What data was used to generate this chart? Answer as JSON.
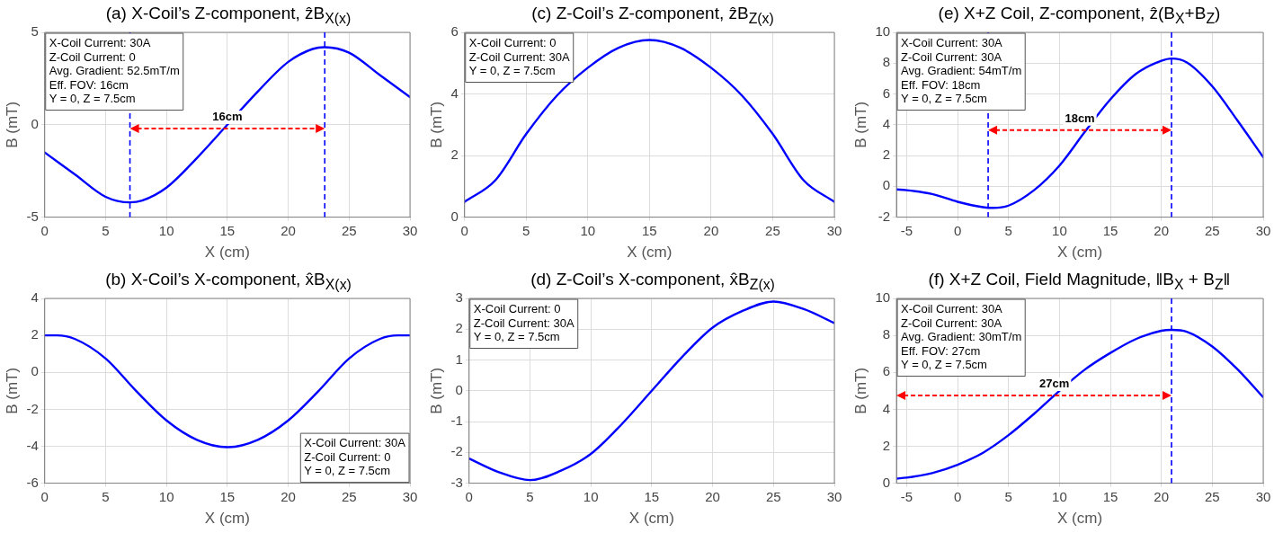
{
  "chart_data": [
    {
      "type": "line",
      "title": "(a) X-Coil’s Z-component, ẑB$_{X(x)}$",
      "xlabel": "X (cm)",
      "ylabel": "B (mT)",
      "x": [
        0,
        2.5,
        5,
        7,
        8,
        10,
        12.5,
        15,
        17.5,
        20,
        22,
        23,
        25,
        27.5,
        30
      ],
      "series": [
        {
          "color": "#0000ff",
          "values": [
            -1.5,
            -2.7,
            -3.9,
            -4.2,
            -4.1,
            -3.4,
            -1.8,
            0,
            1.8,
            3.4,
            4.1,
            4.2,
            3.9,
            2.7,
            1.5
          ]
        }
      ],
      "xlim": [
        0,
        30
      ],
      "xticks": [
        0,
        5,
        10,
        15,
        20,
        25,
        30
      ],
      "ylim": [
        -5,
        5
      ],
      "yticks": [
        -5,
        0,
        5
      ],
      "grid": true,
      "ref_lines": [
        {
          "axis": "x",
          "value": 7,
          "color": "#0000ff",
          "line_style": "dashed"
        },
        {
          "axis": "x",
          "value": 23,
          "color": "#0000ff",
          "line_style": "dashed"
        }
      ],
      "annotations": [
        "X-Coil Current: 30A\nZ-Coil Current: 0\nAvg. Gradient: 52.5mT/m\nEff. FOV: 16cm\nY = 0, Z = 7.5cm",
        {
          "text": "16cm",
          "x": 15,
          "y": -0.2
        }
      ]
    },
    {
      "type": "line",
      "title": "(c) Z-Coil’s Z-component, ẑB$_{Z(x)}$",
      "xlabel": "X (cm)",
      "ylabel": "B (mT)",
      "x": [
        0,
        2.5,
        5,
        7.5,
        10,
        12.5,
        15,
        17.5,
        20,
        22.5,
        25,
        27.5,
        30
      ],
      "series": [
        {
          "color": "#0000ff",
          "values": [
            0.5,
            1.2,
            2.7,
            3.95,
            4.85,
            5.5,
            5.75,
            5.5,
            4.85,
            3.95,
            2.7,
            1.2,
            0.5
          ]
        }
      ],
      "xlim": [
        0,
        30
      ],
      "xticks": [
        0,
        5,
        10,
        15,
        20,
        25,
        30
      ],
      "ylim": [
        0,
        6
      ],
      "yticks": [
        0,
        2,
        4,
        6
      ],
      "grid": true,
      "annotations": [
        "X-Coil Current: 0\nZ-Coil Current: 30A\nY = 0, Z = 7.5cm"
      ]
    },
    {
      "type": "line",
      "title": "(e) X+Z Coil, Z-component, ẑ(B$_{X}$+B$_{Z}$)",
      "xlabel": "X (cm)",
      "ylabel": "B (mT)",
      "x": [
        -6,
        -5,
        -2.5,
        0,
        2.5,
        3.5,
        5,
        7.5,
        10,
        12.5,
        15,
        17.5,
        20,
        21,
        22.5,
        25,
        27.5,
        30
      ],
      "series": [
        {
          "color": "#0000ff",
          "values": [
            -0.2,
            -0.25,
            -0.5,
            -1.0,
            -1.35,
            -1.4,
            -1.25,
            -0.25,
            1.35,
            3.55,
            5.65,
            7.3,
            8.15,
            8.3,
            8.05,
            6.5,
            4.25,
            1.9
          ]
        }
      ],
      "xlim": [
        -6,
        30
      ],
      "xticks": [
        -5,
        0,
        5,
        10,
        15,
        20,
        25,
        30
      ],
      "ylim": [
        -2,
        10
      ],
      "yticks": [
        -2,
        0,
        2,
        4,
        6,
        8,
        10
      ],
      "grid": true,
      "ref_lines": [
        {
          "axis": "x",
          "value": 3,
          "color": "#0000ff",
          "line_style": "dashed"
        },
        {
          "axis": "x",
          "value": 21,
          "color": "#0000ff",
          "line_style": "dashed"
        }
      ],
      "annotations": [
        "X-Coil Current: 30A\nZ-Coil Current: 30A\nAvg. Gradient: 54mT/m\nEff. FOV: 18cm\nY = 0, Z = 7.5cm",
        {
          "text": "18cm",
          "x": 12,
          "y": 3.65
        }
      ]
    },
    {
      "type": "line",
      "title": "(b) X-Coil’s X-component, x̂B$_{X(x)}$",
      "xlabel": "X (cm)",
      "ylabel": "B (mT)",
      "x": [
        0,
        1,
        2.5,
        5,
        7.5,
        10,
        12.5,
        15,
        17.5,
        20,
        22.5,
        25,
        27.5,
        29,
        30
      ],
      "series": [
        {
          "color": "#0000ff",
          "values": [
            2.0,
            2.0,
            1.8,
            0.75,
            -1.0,
            -2.6,
            -3.65,
            -4.05,
            -3.65,
            -2.6,
            -1.0,
            0.75,
            1.8,
            2.0,
            2.0
          ]
        }
      ],
      "xlim": [
        0,
        30
      ],
      "xticks": [
        0,
        5,
        10,
        15,
        20,
        25,
        30
      ],
      "ylim": [
        -6,
        4
      ],
      "yticks": [
        -6,
        -4,
        -2,
        0,
        2,
        4
      ],
      "grid": true,
      "annotations": [
        "X-Coil Current: 30A\nZ-Coil Current: 0\nY = 0, Z = 7.5cm"
      ]
    },
    {
      "type": "line",
      "title": "(d) Z-Coil’s X-component, x̂B$_{Z(x)}$",
      "xlabel": "X (cm)",
      "ylabel": "B (mT)",
      "x": [
        0,
        2.5,
        5,
        7.5,
        10,
        12.5,
        15,
        17.5,
        20,
        22.5,
        25,
        27.5,
        30
      ],
      "series": [
        {
          "color": "#0000ff",
          "values": [
            -2.2,
            -2.65,
            -2.9,
            -2.6,
            -2.05,
            -1.1,
            0,
            1.1,
            2.05,
            2.6,
            2.9,
            2.65,
            2.2
          ]
        }
      ],
      "xlim": [
        0,
        30
      ],
      "xticks": [
        0,
        5,
        10,
        15,
        20,
        25,
        30
      ],
      "ylim": [
        -3,
        3
      ],
      "yticks": [
        -3,
        -2,
        -1,
        0,
        1,
        2,
        3
      ],
      "grid": true,
      "annotations": [
        "X-Coil Current: 0\nZ-Coil Current: 30A\nY = 0, Z = 7.5cm"
      ]
    },
    {
      "type": "line",
      "title": "(f) X+Z Coil, Field Magnitude, ‖B$_{X}$ + B$_{Z}$‖",
      "xlabel": "X (cm)",
      "ylabel": "B (mT)",
      "x": [
        -6,
        -5,
        -2.5,
        0,
        2.5,
        5,
        7.5,
        10,
        12.5,
        15,
        17.5,
        20,
        21,
        22.5,
        25,
        27.5,
        30
      ],
      "series": [
        {
          "color": "#0000ff",
          "values": [
            0.25,
            0.3,
            0.55,
            1.0,
            1.65,
            2.6,
            3.75,
            5.0,
            6.15,
            7.05,
            7.8,
            8.25,
            8.3,
            8.2,
            7.4,
            6.15,
            4.65
          ]
        }
      ],
      "xlim": [
        -6,
        30
      ],
      "xticks": [
        -5,
        0,
        5,
        10,
        15,
        20,
        25,
        30
      ],
      "ylim": [
        0,
        10
      ],
      "yticks": [
        0,
        2,
        4,
        6,
        8,
        10
      ],
      "grid": true,
      "ref_lines": [
        {
          "axis": "x",
          "value": 21,
          "color": "#0000ff",
          "line_style": "dashed"
        }
      ],
      "annotations": [
        "X-Coil Current: 30A\nZ-Coil Current: 30A\nAvg. Gradient: 30mT/m\nEff. FOV: 27cm\nY = 0, Z = 7.5cm",
        {
          "text": "27cm",
          "x": 9.5,
          "y": 4.75
        }
      ]
    }
  ]
}
